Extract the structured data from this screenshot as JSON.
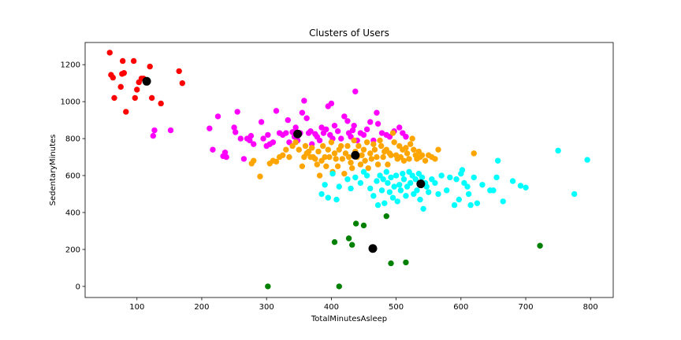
{
  "chart_data": {
    "type": "scatter",
    "title": "Clusters of Users",
    "xlabel": "TotalMinutesAsleep",
    "ylabel": "SedentaryMinutes",
    "xlim": [
      20,
      835
    ],
    "ylim": [
      -60,
      1320
    ],
    "xticks": [
      100,
      200,
      300,
      400,
      500,
      600,
      700,
      800
    ],
    "yticks": [
      0,
      200,
      400,
      600,
      800,
      1000,
      1200
    ],
    "grid": false,
    "legend": "none",
    "series": [
      {
        "color": "#ff0000",
        "points": [
          [
            58,
            1265
          ],
          [
            60,
            1145
          ],
          [
            63,
            1130
          ],
          [
            65,
            1020
          ],
          [
            75,
            1080
          ],
          [
            77,
            1150
          ],
          [
            78,
            1220
          ],
          [
            80,
            1155
          ],
          [
            83,
            945
          ],
          [
            95,
            1220
          ],
          [
            97,
            1020
          ],
          [
            100,
            1065
          ],
          [
            103,
            1105
          ],
          [
            107,
            1125
          ],
          [
            110,
            1125
          ],
          [
            120,
            1190
          ],
          [
            123,
            1020
          ],
          [
            137,
            990
          ],
          [
            165,
            1165
          ],
          [
            170,
            1100
          ]
        ]
      },
      {
        "color": "#ff00ff",
        "points": [
          [
            125,
            815
          ],
          [
            127,
            845
          ],
          [
            152,
            845
          ],
          [
            212,
            855
          ],
          [
            217,
            740
          ],
          [
            225,
            920
          ],
          [
            233,
            705
          ],
          [
            236,
            725
          ],
          [
            238,
            700
          ],
          [
            250,
            860
          ],
          [
            252,
            835
          ],
          [
            255,
            945
          ],
          [
            260,
            800
          ],
          [
            265,
            690
          ],
          [
            270,
            800
          ],
          [
            274,
            790
          ],
          [
            276,
            815
          ],
          [
            280,
            770
          ],
          [
            292,
            890
          ],
          [
            295,
            800
          ],
          [
            300,
            760
          ],
          [
            302,
            820
          ],
          [
            305,
            770
          ],
          [
            310,
            780
          ],
          [
            315,
            950
          ],
          [
            320,
            830
          ],
          [
            325,
            820
          ],
          [
            330,
            830
          ],
          [
            333,
            900
          ],
          [
            335,
            780
          ],
          [
            340,
            835
          ],
          [
            343,
            810
          ],
          [
            345,
            860
          ],
          [
            348,
            790
          ],
          [
            352,
            830
          ],
          [
            355,
            940
          ],
          [
            358,
            1005
          ],
          [
            362,
            910
          ],
          [
            365,
            830
          ],
          [
            368,
            840
          ],
          [
            370,
            770
          ],
          [
            375,
            825
          ],
          [
            378,
            810
          ],
          [
            382,
            790
          ],
          [
            385,
            860
          ],
          [
            388,
            830
          ],
          [
            392,
            850
          ],
          [
            395,
            975
          ],
          [
            398,
            820
          ],
          [
            400,
            990
          ],
          [
            402,
            800
          ],
          [
            405,
            870
          ],
          [
            410,
            840
          ],
          [
            415,
            800
          ],
          [
            420,
            920
          ],
          [
            425,
            895
          ],
          [
            427,
            830
          ],
          [
            430,
            810
          ],
          [
            433,
            845
          ],
          [
            435,
            870
          ],
          [
            437,
            1055
          ],
          [
            440,
            790
          ],
          [
            445,
            830
          ],
          [
            450,
            820
          ],
          [
            455,
            850
          ],
          [
            460,
            890
          ],
          [
            465,
            790
          ],
          [
            470,
            940
          ],
          [
            472,
            880
          ],
          [
            478,
            830
          ],
          [
            485,
            820
          ],
          [
            490,
            810
          ],
          [
            497,
            840
          ],
          [
            505,
            860
          ],
          [
            510,
            830
          ],
          [
            515,
            810
          ]
        ]
      },
      {
        "color": "#ffa500",
        "points": [
          [
            277,
            665
          ],
          [
            280,
            680
          ],
          [
            290,
            595
          ],
          [
            305,
            665
          ],
          [
            310,
            680
          ],
          [
            315,
            675
          ],
          [
            320,
            700
          ],
          [
            325,
            710
          ],
          [
            330,
            740
          ],
          [
            335,
            700
          ],
          [
            340,
            760
          ],
          [
            345,
            780
          ],
          [
            350,
            740
          ],
          [
            355,
            650
          ],
          [
            358,
            700
          ],
          [
            360,
            760
          ],
          [
            362,
            720
          ],
          [
            365,
            730
          ],
          [
            368,
            700
          ],
          [
            370,
            750
          ],
          [
            372,
            700
          ],
          [
            375,
            690
          ],
          [
            378,
            660
          ],
          [
            380,
            730
          ],
          [
            382,
            600
          ],
          [
            385,
            680
          ],
          [
            387,
            760
          ],
          [
            390,
            700
          ],
          [
            392,
            650
          ],
          [
            395,
            740
          ],
          [
            397,
            700
          ],
          [
            400,
            780
          ],
          [
            402,
            620
          ],
          [
            405,
            720
          ],
          [
            407,
            690
          ],
          [
            410,
            650
          ],
          [
            412,
            740
          ],
          [
            415,
            760
          ],
          [
            417,
            690
          ],
          [
            420,
            610
          ],
          [
            422,
            720
          ],
          [
            425,
            760
          ],
          [
            427,
            700
          ],
          [
            430,
            670
          ],
          [
            432,
            640
          ],
          [
            435,
            790
          ],
          [
            437,
            730
          ],
          [
            440,
            700
          ],
          [
            442,
            760
          ],
          [
            445,
            660
          ],
          [
            447,
            710
          ],
          [
            450,
            740
          ],
          [
            452,
            680
          ],
          [
            455,
            780
          ],
          [
            457,
            640
          ],
          [
            460,
            720
          ],
          [
            462,
            690
          ],
          [
            465,
            770
          ],
          [
            467,
            740
          ],
          [
            470,
            700
          ],
          [
            472,
            660
          ],
          [
            475,
            790
          ],
          [
            477,
            760
          ],
          [
            480,
            700
          ],
          [
            482,
            730
          ],
          [
            485,
            740
          ],
          [
            487,
            660
          ],
          [
            490,
            720
          ],
          [
            492,
            710
          ],
          [
            495,
            830
          ],
          [
            497,
            780
          ],
          [
            500,
            710
          ],
          [
            502,
            690
          ],
          [
            505,
            760
          ],
          [
            507,
            700
          ],
          [
            510,
            740
          ],
          [
            512,
            680
          ],
          [
            515,
            750
          ],
          [
            517,
            720
          ],
          [
            520,
            690
          ],
          [
            522,
            770
          ],
          [
            525,
            800
          ],
          [
            527,
            740
          ],
          [
            530,
            710
          ],
          [
            532,
            690
          ],
          [
            535,
            730
          ],
          [
            537,
            700
          ],
          [
            540,
            710
          ],
          [
            545,
            680
          ],
          [
            550,
            710
          ],
          [
            555,
            700
          ],
          [
            560,
            690
          ],
          [
            565,
            740
          ],
          [
            620,
            720
          ]
        ]
      },
      {
        "color": "#00ffff",
        "points": [
          [
            385,
            500
          ],
          [
            390,
            550
          ],
          [
            395,
            480
          ],
          [
            402,
            610
          ],
          [
            408,
            470
          ],
          [
            412,
            540
          ],
          [
            425,
            580
          ],
          [
            430,
            530
          ],
          [
            437,
            590
          ],
          [
            445,
            560
          ],
          [
            450,
            620
          ],
          [
            455,
            600
          ],
          [
            460,
            530
          ],
          [
            465,
            490
          ],
          [
            470,
            570
          ],
          [
            472,
            440
          ],
          [
            475,
            600
          ],
          [
            478,
            520
          ],
          [
            480,
            580
          ],
          [
            482,
            450
          ],
          [
            485,
            620
          ],
          [
            487,
            560
          ],
          [
            490,
            510
          ],
          [
            492,
            590
          ],
          [
            495,
            480
          ],
          [
            497,
            540
          ],
          [
            500,
            600
          ],
          [
            502,
            460
          ],
          [
            505,
            550
          ],
          [
            507,
            520
          ],
          [
            510,
            610
          ],
          [
            512,
            580
          ],
          [
            515,
            490
          ],
          [
            517,
            540
          ],
          [
            520,
            620
          ],
          [
            522,
            560
          ],
          [
            525,
            600
          ],
          [
            527,
            500
          ],
          [
            530,
            580
          ],
          [
            532,
            520
          ],
          [
            535,
            610
          ],
          [
            537,
            470
          ],
          [
            540,
            590
          ],
          [
            542,
            420
          ],
          [
            545,
            560
          ],
          [
            547,
            540
          ],
          [
            550,
            510
          ],
          [
            555,
            580
          ],
          [
            560,
            560
          ],
          [
            565,
            500
          ],
          [
            570,
            600
          ],
          [
            578,
            520
          ],
          [
            583,
            590
          ],
          [
            590,
            440
          ],
          [
            593,
            580
          ],
          [
            597,
            470
          ],
          [
            600,
            610
          ],
          [
            602,
            630
          ],
          [
            605,
            560
          ],
          [
            610,
            540
          ],
          [
            612,
            500
          ],
          [
            615,
            440
          ],
          [
            620,
            590
          ],
          [
            625,
            450
          ],
          [
            633,
            550
          ],
          [
            645,
            520
          ],
          [
            650,
            520
          ],
          [
            655,
            590
          ],
          [
            657,
            680
          ],
          [
            665,
            460
          ],
          [
            680,
            570
          ],
          [
            692,
            545
          ],
          [
            700,
            535
          ],
          [
            750,
            735
          ],
          [
            775,
            500
          ],
          [
            795,
            685
          ]
        ]
      },
      {
        "color": "#008000",
        "points": [
          [
            302,
            0
          ],
          [
            405,
            240
          ],
          [
            412,
            0
          ],
          [
            427,
            260
          ],
          [
            432,
            225
          ],
          [
            438,
            340
          ],
          [
            450,
            330
          ],
          [
            485,
            380
          ],
          [
            492,
            125
          ],
          [
            515,
            130
          ],
          [
            722,
            220
          ]
        ]
      },
      {
        "color": "#000000",
        "is_centroid": true,
        "points": [
          [
            115,
            1110
          ],
          [
            348,
            825
          ],
          [
            437,
            710
          ],
          [
            464,
            205
          ],
          [
            538,
            555
          ]
        ]
      }
    ]
  }
}
